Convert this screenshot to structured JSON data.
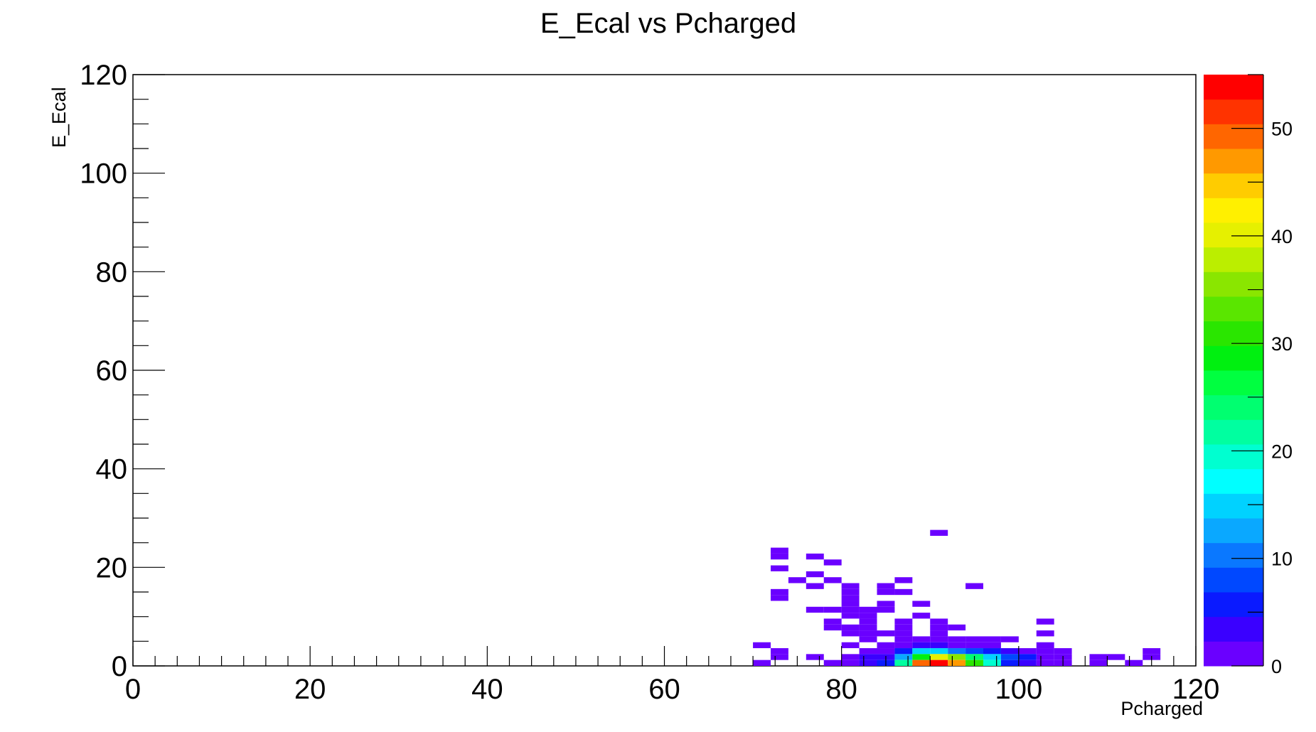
{
  "chart_data": {
    "type": "heatmap",
    "title": "E_Ecal vs Pcharged",
    "xlabel": "Pcharged",
    "ylabel": "E_Ecal",
    "xlim": [
      0,
      120
    ],
    "ylim": [
      0,
      120
    ],
    "zlim": [
      0,
      55
    ],
    "x_ticks": [
      "0",
      "20",
      "40",
      "60",
      "80",
      "100",
      "120"
    ],
    "y_ticks": [
      "0",
      "20",
      "40",
      "60",
      "80",
      "100",
      "120"
    ],
    "z_ticks": [
      "0",
      "10",
      "20",
      "30",
      "40",
      "50"
    ],
    "bin_width": 2,
    "bin_height": 1.2,
    "palette": [
      "#6a00ff",
      "#3a00ff",
      "#0a1aff",
      "#0048ff",
      "#0a78ff",
      "#0aa8ff",
      "#00d2ff",
      "#00ffff",
      "#00ffd0",
      "#00ffa0",
      "#00ff70",
      "#00ff40",
      "#00f010",
      "#2ae600",
      "#5ae600",
      "#8ae600",
      "#bbee00",
      "#e6f000",
      "#fff000",
      "#ffcc00",
      "#ff9900",
      "#ff6600",
      "#ff3300",
      "#ff0000"
    ],
    "bins": [
      {
        "x": 90,
        "y": 26.4,
        "z": 1
      },
      {
        "x": 72,
        "y": 22.8,
        "z": 1
      },
      {
        "x": 72,
        "y": 21.6,
        "z": 1
      },
      {
        "x": 76,
        "y": 21.6,
        "z": 1
      },
      {
        "x": 78,
        "y": 20.4,
        "z": 1
      },
      {
        "x": 72,
        "y": 19.2,
        "z": 1
      },
      {
        "x": 76,
        "y": 18.0,
        "z": 1
      },
      {
        "x": 74,
        "y": 16.8,
        "z": 1
      },
      {
        "x": 78,
        "y": 16.8,
        "z": 2
      },
      {
        "x": 86,
        "y": 16.8,
        "z": 1
      },
      {
        "x": 76,
        "y": 15.6,
        "z": 1
      },
      {
        "x": 80,
        "y": 15.6,
        "z": 1
      },
      {
        "x": 84,
        "y": 15.6,
        "z": 1
      },
      {
        "x": 94,
        "y": 15.6,
        "z": 1
      },
      {
        "x": 72,
        "y": 14.4,
        "z": 1
      },
      {
        "x": 80,
        "y": 14.4,
        "z": 1
      },
      {
        "x": 84,
        "y": 14.4,
        "z": 1
      },
      {
        "x": 86,
        "y": 14.4,
        "z": 1
      },
      {
        "x": 72,
        "y": 13.2,
        "z": 1
      },
      {
        "x": 80,
        "y": 13.2,
        "z": 1
      },
      {
        "x": 84,
        "y": 12.0,
        "z": 1
      },
      {
        "x": 88,
        "y": 12.0,
        "z": 1
      },
      {
        "x": 80,
        "y": 12.0,
        "z": 1
      },
      {
        "x": 76,
        "y": 10.8,
        "z": 1
      },
      {
        "x": 78,
        "y": 10.8,
        "z": 1
      },
      {
        "x": 80,
        "y": 10.8,
        "z": 1
      },
      {
        "x": 82,
        "y": 10.8,
        "z": 1
      },
      {
        "x": 84,
        "y": 10.8,
        "z": 1
      },
      {
        "x": 80,
        "y": 9.6,
        "z": 1
      },
      {
        "x": 82,
        "y": 9.6,
        "z": 1
      },
      {
        "x": 88,
        "y": 9.6,
        "z": 1
      },
      {
        "x": 78,
        "y": 8.4,
        "z": 1
      },
      {
        "x": 82,
        "y": 8.4,
        "z": 1
      },
      {
        "x": 86,
        "y": 8.4,
        "z": 1
      },
      {
        "x": 90,
        "y": 8.4,
        "z": 1
      },
      {
        "x": 102,
        "y": 8.4,
        "z": 1
      },
      {
        "x": 78,
        "y": 7.2,
        "z": 1
      },
      {
        "x": 80,
        "y": 7.2,
        "z": 1
      },
      {
        "x": 82,
        "y": 7.2,
        "z": 1
      },
      {
        "x": 86,
        "y": 7.2,
        "z": 1
      },
      {
        "x": 90,
        "y": 7.2,
        "z": 1
      },
      {
        "x": 92,
        "y": 7.2,
        "z": 1
      },
      {
        "x": 80,
        "y": 6.0,
        "z": 1
      },
      {
        "x": 82,
        "y": 6.0,
        "z": 1
      },
      {
        "x": 84,
        "y": 6.0,
        "z": 1
      },
      {
        "x": 86,
        "y": 6.0,
        "z": 1
      },
      {
        "x": 90,
        "y": 6.0,
        "z": 1
      },
      {
        "x": 102,
        "y": 6.0,
        "z": 1
      },
      {
        "x": 82,
        "y": 4.8,
        "z": 1
      },
      {
        "x": 86,
        "y": 4.8,
        "z": 2
      },
      {
        "x": 88,
        "y": 4.8,
        "z": 2
      },
      {
        "x": 90,
        "y": 4.8,
        "z": 1
      },
      {
        "x": 92,
        "y": 4.8,
        "z": 2
      },
      {
        "x": 94,
        "y": 4.8,
        "z": 1
      },
      {
        "x": 96,
        "y": 4.8,
        "z": 1
      },
      {
        "x": 98,
        "y": 4.8,
        "z": 1
      },
      {
        "x": 70,
        "y": 3.6,
        "z": 1
      },
      {
        "x": 80,
        "y": 3.6,
        "z": 1
      },
      {
        "x": 84,
        "y": 3.6,
        "z": 1
      },
      {
        "x": 86,
        "y": 3.6,
        "z": 2
      },
      {
        "x": 88,
        "y": 3.6,
        "z": 3
      },
      {
        "x": 90,
        "y": 3.6,
        "z": 3
      },
      {
        "x": 92,
        "y": 3.6,
        "z": 2
      },
      {
        "x": 94,
        "y": 3.6,
        "z": 2
      },
      {
        "x": 96,
        "y": 3.6,
        "z": 2
      },
      {
        "x": 102,
        "y": 3.6,
        "z": 1
      },
      {
        "x": 72,
        "y": 2.4,
        "z": 1
      },
      {
        "x": 82,
        "y": 2.4,
        "z": 2
      },
      {
        "x": 84,
        "y": 2.4,
        "z": 1
      },
      {
        "x": 86,
        "y": 2.4,
        "z": 6
      },
      {
        "x": 88,
        "y": 2.4,
        "z": 16
      },
      {
        "x": 90,
        "y": 2.4,
        "z": 14
      },
      {
        "x": 92,
        "y": 2.4,
        "z": 11
      },
      {
        "x": 94,
        "y": 2.4,
        "z": 8
      },
      {
        "x": 96,
        "y": 2.4,
        "z": 5
      },
      {
        "x": 98,
        "y": 2.4,
        "z": 3
      },
      {
        "x": 100,
        "y": 2.4,
        "z": 2
      },
      {
        "x": 102,
        "y": 2.4,
        "z": 1
      },
      {
        "x": 104,
        "y": 2.4,
        "z": 1
      },
      {
        "x": 114,
        "y": 2.4,
        "z": 1
      },
      {
        "x": 72,
        "y": 1.2,
        "z": 1
      },
      {
        "x": 76,
        "y": 1.2,
        "z": 1
      },
      {
        "x": 80,
        "y": 1.2,
        "z": 2
      },
      {
        "x": 82,
        "y": 1.2,
        "z": 3
      },
      {
        "x": 84,
        "y": 1.2,
        "z": 4
      },
      {
        "x": 86,
        "y": 1.2,
        "z": 12
      },
      {
        "x": 88,
        "y": 1.2,
        "z": 28
      },
      {
        "x": 90,
        "y": 1.2,
        "z": 40
      },
      {
        "x": 92,
        "y": 1.2,
        "z": 35
      },
      {
        "x": 94,
        "y": 1.2,
        "z": 24
      },
      {
        "x": 96,
        "y": 1.2,
        "z": 16
      },
      {
        "x": 98,
        "y": 1.2,
        "z": 8
      },
      {
        "x": 100,
        "y": 1.2,
        "z": 5
      },
      {
        "x": 102,
        "y": 1.2,
        "z": 2
      },
      {
        "x": 104,
        "y": 1.2,
        "z": 2
      },
      {
        "x": 108,
        "y": 1.2,
        "z": 1
      },
      {
        "x": 110,
        "y": 1.2,
        "z": 1
      },
      {
        "x": 114,
        "y": 1.2,
        "z": 1
      },
      {
        "x": 70,
        "y": 0,
        "z": 1
      },
      {
        "x": 78,
        "y": 0,
        "z": 1
      },
      {
        "x": 80,
        "y": 0,
        "z": 2
      },
      {
        "x": 82,
        "y": 0,
        "z": 3
      },
      {
        "x": 84,
        "y": 0,
        "z": 6
      },
      {
        "x": 86,
        "y": 0,
        "z": 22
      },
      {
        "x": 88,
        "y": 0,
        "z": 50
      },
      {
        "x": 90,
        "y": 0,
        "z": 55
      },
      {
        "x": 92,
        "y": 0,
        "z": 46
      },
      {
        "x": 94,
        "y": 0,
        "z": 30
      },
      {
        "x": 96,
        "y": 0,
        "z": 20
      },
      {
        "x": 98,
        "y": 0,
        "z": 5
      },
      {
        "x": 100,
        "y": 0,
        "z": 4
      },
      {
        "x": 102,
        "y": 0,
        "z": 2
      },
      {
        "x": 104,
        "y": 0,
        "z": 2
      },
      {
        "x": 108,
        "y": 0,
        "z": 1
      },
      {
        "x": 112,
        "y": 0,
        "z": 1
      }
    ]
  }
}
